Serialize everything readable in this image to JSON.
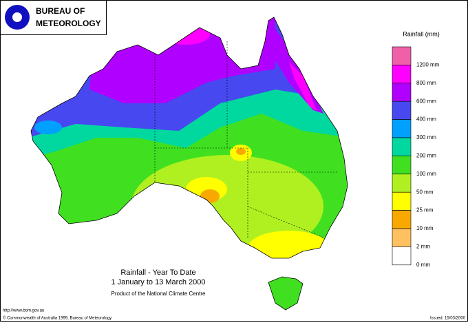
{
  "logo": {
    "line1": "BUREAU OF",
    "line2": "METEOROLOGY"
  },
  "legend": {
    "title": "Rainfall (mm)",
    "colors": [
      "#f060a8",
      "#ff00ff",
      "#b000ff",
      "#4848f0",
      "#00a0ff",
      "#00d8a0",
      "#40e020",
      "#b0f020",
      "#ffff00",
      "#f8a800",
      "#ffc060",
      "#ffffff"
    ],
    "labels": [
      "1200 mm",
      "800 mm",
      "600 mm",
      "400 mm",
      "300 mm",
      "200 mm",
      "100 mm",
      "50 mm",
      "25 mm",
      "10 mm",
      "2 mm",
      "0 mm"
    ]
  },
  "caption": {
    "title": "Rainfall - Year To Date",
    "period": "1 January to 13 March 2000",
    "product": "Product of the National Climate Centre"
  },
  "footer": {
    "url": "http://www.bom.gov.au",
    "copyright": "© Commonwealth of Australia 1999, Bureau of Meteorology",
    "issued": "Issued: 15/03/2000"
  }
}
